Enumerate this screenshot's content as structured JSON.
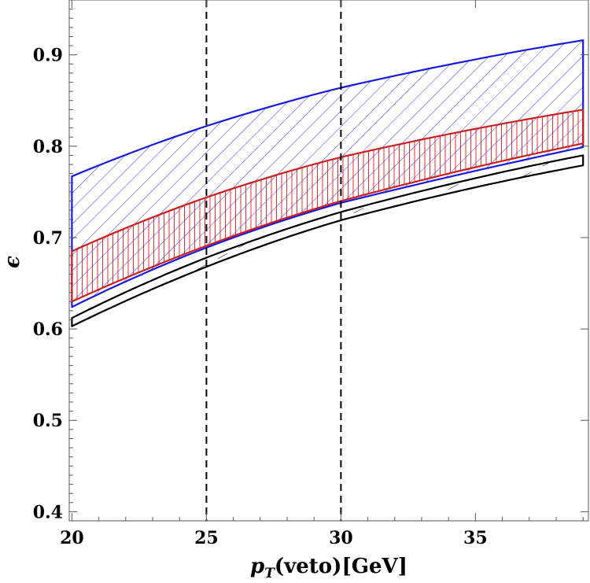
{
  "chart_data": {
    "type": "area",
    "xlabel": "p_T(veto)[GeV]",
    "xlabel_main": "p",
    "xlabel_sub": "T",
    "xlabel_rest": "(veto)[GeV]",
    "ylabel": "ϵ",
    "xlim": [
      19.9,
      39.2
    ],
    "ylim": [
      0.39,
      0.96
    ],
    "x_ticks": [
      20,
      25,
      30,
      35
    ],
    "x_tick_labels": [
      "20",
      "25",
      "30",
      "35"
    ],
    "y_ticks": [
      0.4,
      0.5,
      0.6,
      0.7,
      0.8,
      0.9
    ],
    "y_tick_labels": [
      "0.4",
      "0.5",
      "0.6",
      "0.7",
      "0.8",
      "0.9"
    ],
    "vertical_lines": [
      25,
      30
    ],
    "x": [
      20,
      25,
      30,
      35,
      39
    ],
    "series": [
      {
        "color": "#1a1adb",
        "hatch": "diagonal",
        "upper": [
          0.767,
          0.822,
          0.864,
          0.895,
          0.916
        ],
        "lower": [
          0.624,
          0.689,
          0.738,
          0.773,
          0.799
        ]
      },
      {
        "color": "#cc1f1f",
        "hatch": "vertical",
        "upper": [
          0.685,
          0.744,
          0.788,
          0.819,
          0.84
        ],
        "lower": [
          0.63,
          0.691,
          0.74,
          0.777,
          0.803
        ]
      },
      {
        "color": "#000000",
        "hatch": "horizontal",
        "upper": [
          0.612,
          0.678,
          0.728,
          0.765,
          0.79
        ],
        "lower": [
          0.603,
          0.668,
          0.719,
          0.755,
          0.779
        ]
      }
    ]
  }
}
